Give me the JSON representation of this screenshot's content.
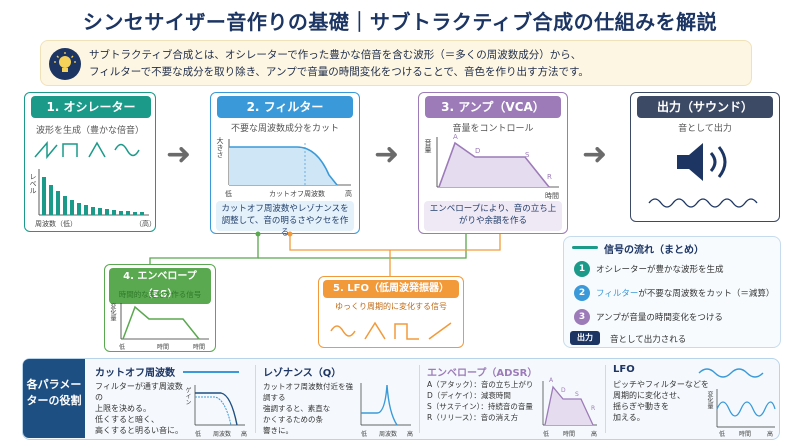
{
  "title": "シンセサイザー音作りの基礎｜サブトラクティブ合成の仕組みを解説",
  "intro": {
    "line1": "サブトラクティブ合成とは、オシレーターで作った豊かな倍音を含む波形（＝多くの周波数成分）から、",
    "line2": "フィルターで不要な成分を取り除き、アンプで音量の時間変化をつけることで、音色を作り出す方法です。"
  },
  "osc": {
    "title": "1. オシレーター",
    "subtitle": "波形を生成（豊かな倍音）",
    "yaxis": "レベル",
    "xaxis": "周波数（低）",
    "xaxis_end": "（高）"
  },
  "filter": {
    "title": "2. フィルター",
    "subtitle": "不要な周波数成分をカット",
    "yaxis": "大きさ",
    "x_low": "低",
    "x_mid": "カットオフ周波数",
    "x_high": "高",
    "note": "カットオフ周波数やレゾナンスを調整して、音の明るさやクセを作る"
  },
  "amp": {
    "title": "3. アンプ（VCA）",
    "subtitle": "音量をコントロール",
    "yaxis": "音量",
    "xaxis": "時間",
    "points": [
      "A",
      "D",
      "S",
      "R"
    ],
    "note": "エンベロープにより、音の立ち上がりや余韻を作る"
  },
  "output": {
    "title": "出力（サウンド）",
    "subtitle": "音として出力"
  },
  "env": {
    "title": "4. エンベロープ（EG）",
    "subtitle": "時間的な変化を作る信号",
    "yaxis": "変化量",
    "x_start": "低",
    "x_mid": "時間",
    "x_end": "時間",
    "points": [
      "A",
      "D",
      "S",
      "R"
    ]
  },
  "lfo": {
    "title": "5. LFO（低周波発振器）",
    "subtitle": "ゆっくり周期的に変化する信号"
  },
  "flow": {
    "title": "信号の流れ（まとめ）",
    "steps": [
      {
        "num": "1",
        "text": "オシレーターが豊かな波形を生成"
      },
      {
        "num": "2",
        "prefix": "フィルター",
        "text": "が不要な周波数をカット（＝減算）"
      },
      {
        "num": "3",
        "text": "アンプが音量の時間変化をつける"
      }
    ],
    "out_label": "出力",
    "out_text": "音として出力される"
  },
  "roles": {
    "label": "各パラメーターの役割",
    "cutoff": {
      "title": "カットオフ周波数",
      "text": [
        "フィルターが通す周波数の",
        "上限を決める。",
        "低くすると暗く、",
        "高くすると明るい音に。"
      ],
      "yaxis": "ゲイン",
      "x_low": "低",
      "x_mid": "周波数",
      "x_high": "高"
    },
    "resonance": {
      "title": "レゾナンス（Q）",
      "text": [
        "カットオフ周波数付近を強調する",
        "強調すると、素直な",
        "かくするための条",
        "響きに。"
      ],
      "x_low": "低",
      "x_mid": "周波数",
      "x_high": "高"
    },
    "adsr": {
      "title": "エンベロープ（ADSR）",
      "text": [
        "A（アタック）：音の立ち上がり",
        "D（ディケイ）：減衰時間",
        "S（サステイン）：持続音の音量",
        "R（リリース）：音の消え方"
      ],
      "points": [
        "A",
        "D",
        "S",
        "R"
      ],
      "x_low": "低",
      "x_mid": "時間",
      "x_high": "高"
    },
    "lfo": {
      "title": "LFO",
      "text": [
        "ピッチやフィルターなどを",
        "周期的に変化させ、",
        "揺らぎや動きを",
        "加える。"
      ],
      "yaxis": "変化量",
      "x_low": "低",
      "x_mid": "時間",
      "x_high": "高"
    }
  },
  "colors": {
    "teal": "#1b9a8a",
    "blue": "#3a9ad9",
    "purple": "#9c7bb8",
    "navy": "#3d4a66",
    "green": "#5aa84f",
    "orange": "#f29a3a"
  }
}
